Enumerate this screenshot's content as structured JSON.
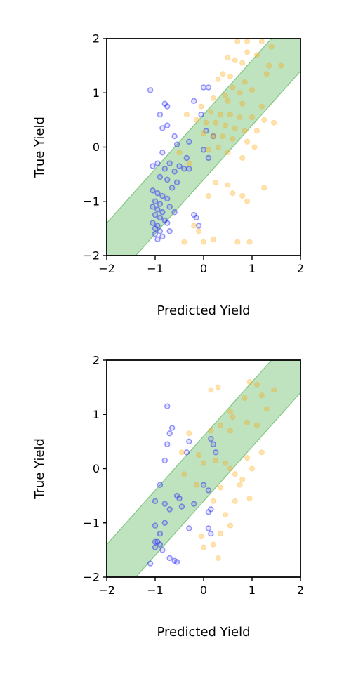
{
  "chart_data": [
    {
      "type": "scatter",
      "xlabel": "Predicted Yield",
      "ylabel": "True Yield",
      "xlim": [
        -2,
        2
      ],
      "ylim": [
        -2,
        2
      ],
      "xticks": [
        "−2",
        "−1",
        "0",
        "1",
        "2"
      ],
      "yticks": [
        "−2",
        "−1",
        "0",
        "1",
        "2"
      ],
      "band": {
        "description": "y = x ± 0.6",
        "half_width": 0.6,
        "color": "#2ca02c"
      },
      "series": [
        {
          "style": "ring",
          "color": "#1f1fff",
          "points": [
            [
              -1.1,
              1.05
            ],
            [
              -0.8,
              0.8
            ],
            [
              -0.75,
              0.75
            ],
            [
              -0.9,
              0.6
            ],
            [
              -0.85,
              0.35
            ],
            [
              -0.75,
              0.4
            ],
            [
              -0.6,
              0.2
            ],
            [
              -0.55,
              0.05
            ],
            [
              -0.85,
              -0.1
            ],
            [
              -1.05,
              -0.35
            ],
            [
              -0.95,
              -0.3
            ],
            [
              -0.8,
              -0.4
            ],
            [
              -0.7,
              -0.3
            ],
            [
              -0.5,
              -0.35
            ],
            [
              -0.4,
              -0.4
            ],
            [
              -0.35,
              -0.2
            ],
            [
              -0.3,
              -0.4
            ],
            [
              -0.9,
              -0.55
            ],
            [
              -0.75,
              -0.6
            ],
            [
              -0.65,
              -0.75
            ],
            [
              -1.05,
              -0.8
            ],
            [
              -0.95,
              -0.85
            ],
            [
              -0.85,
              -0.9
            ],
            [
              -0.75,
              -0.95
            ],
            [
              -1.0,
              -1.0
            ],
            [
              -0.9,
              -1.05
            ],
            [
              -1.05,
              -1.1
            ],
            [
              -0.95,
              -1.15
            ],
            [
              -0.85,
              -1.2
            ],
            [
              -1.0,
              -1.25
            ],
            [
              -0.9,
              -1.3
            ],
            [
              -0.8,
              -1.35
            ],
            [
              -1.05,
              -1.4
            ],
            [
              -0.95,
              -1.45
            ],
            [
              -1.0,
              -1.5
            ],
            [
              -0.9,
              -1.55
            ],
            [
              -1.0,
              -1.6
            ],
            [
              -0.95,
              -1.7
            ],
            [
              -0.85,
              -1.65
            ],
            [
              -0.7,
              -1.55
            ],
            [
              -0.2,
              -1.25
            ],
            [
              -0.15,
              -1.3
            ],
            [
              -0.1,
              -1.45
            ],
            [
              0.1,
              1.1
            ],
            [
              0.0,
              1.1
            ],
            [
              -0.2,
              0.85
            ],
            [
              -0.05,
              0.6
            ],
            [
              0.05,
              0.3
            ],
            [
              0.2,
              0.2
            ],
            [
              -0.3,
              0.1
            ],
            [
              0.0,
              -0.05
            ],
            [
              0.1,
              -0.2
            ],
            [
              -0.6,
              -0.45
            ],
            [
              -0.55,
              -0.65
            ],
            [
              -0.7,
              -1.1
            ],
            [
              -0.6,
              -1.2
            ],
            [
              -0.75,
              -1.4
            ]
          ]
        },
        {
          "style": "filled",
          "color": "#ffa500",
          "points": [
            [
              0.7,
              1.95
            ],
            [
              0.9,
              1.95
            ],
            [
              1.2,
              1.95
            ],
            [
              1.4,
              1.85
            ],
            [
              0.9,
              1.75
            ],
            [
              1.1,
              1.7
            ],
            [
              0.5,
              1.65
            ],
            [
              0.65,
              1.6
            ],
            [
              0.8,
              1.55
            ],
            [
              1.35,
              1.5
            ],
            [
              1.6,
              1.5
            ],
            [
              1.3,
              1.35
            ],
            [
              0.4,
              1.35
            ],
            [
              0.55,
              1.3
            ],
            [
              0.85,
              1.2
            ],
            [
              0.3,
              1.25
            ],
            [
              0.6,
              1.1
            ],
            [
              0.75,
              1.0
            ],
            [
              1.0,
              1.05
            ],
            [
              0.45,
              0.95
            ],
            [
              0.2,
              0.9
            ],
            [
              0.5,
              0.85
            ],
            [
              0.8,
              0.8
            ],
            [
              1.2,
              0.75
            ],
            [
              -0.05,
              0.75
            ],
            [
              0.15,
              0.65
            ],
            [
              0.35,
              0.6
            ],
            [
              0.55,
              0.6
            ],
            [
              0.75,
              0.55
            ],
            [
              1.0,
              0.55
            ],
            [
              -0.35,
              0.6
            ],
            [
              -0.15,
              0.5
            ],
            [
              0.05,
              0.45
            ],
            [
              0.25,
              0.45
            ],
            [
              0.45,
              0.4
            ],
            [
              0.65,
              0.35
            ],
            [
              0.85,
              0.3
            ],
            [
              1.1,
              0.3
            ],
            [
              1.25,
              0.5
            ],
            [
              1.45,
              0.45
            ],
            [
              0.0,
              0.25
            ],
            [
              0.2,
              0.2
            ],
            [
              0.4,
              0.2
            ],
            [
              0.6,
              0.15
            ],
            [
              0.9,
              0.1
            ],
            [
              1.05,
              0.0
            ],
            [
              0.3,
              0.0
            ],
            [
              0.1,
              -0.05
            ],
            [
              0.5,
              -0.1
            ],
            [
              0.8,
              -0.2
            ],
            [
              0.25,
              -0.65
            ],
            [
              0.5,
              -0.7
            ],
            [
              0.6,
              -0.85
            ],
            [
              0.8,
              -0.9
            ],
            [
              0.9,
              -1.0
            ],
            [
              0.1,
              -0.9
            ],
            [
              1.25,
              -0.75
            ],
            [
              -0.2,
              -1.45
            ],
            [
              -0.1,
              -1.55
            ],
            [
              -0.4,
              -1.75
            ],
            [
              0.0,
              -1.75
            ],
            [
              0.2,
              -1.7
            ],
            [
              0.7,
              -1.75
            ],
            [
              0.95,
              -1.75
            ],
            [
              -0.3,
              -0.3
            ],
            [
              -0.5,
              -0.1
            ]
          ]
        }
      ]
    },
    {
      "type": "scatter",
      "xlabel": "Predicted Yield",
      "ylabel": "True Yield",
      "xlim": [
        -2,
        2
      ],
      "ylim": [
        -2,
        2
      ],
      "xticks": [
        "−2",
        "−1",
        "0",
        "1",
        "2"
      ],
      "yticks": [
        "−2",
        "−1",
        "0",
        "1",
        "2"
      ],
      "band": {
        "description": "y = x ± 0.6",
        "half_width": 0.6,
        "color": "#2ca02c"
      },
      "series": [
        {
          "style": "ring",
          "color": "#1f1fff",
          "points": [
            [
              -0.75,
              1.15
            ],
            [
              -0.65,
              0.75
            ],
            [
              -0.7,
              0.65
            ],
            [
              -0.75,
              0.45
            ],
            [
              -0.3,
              0.5
            ],
            [
              -0.35,
              0.3
            ],
            [
              -0.8,
              0.15
            ],
            [
              0.15,
              0.55
            ],
            [
              0.2,
              0.45
            ],
            [
              0.25,
              0.3
            ],
            [
              -0.9,
              -0.3
            ],
            [
              -0.55,
              -0.5
            ],
            [
              -0.5,
              -0.55
            ],
            [
              -1.0,
              -0.6
            ],
            [
              -0.8,
              -0.65
            ],
            [
              -0.7,
              -0.75
            ],
            [
              -0.45,
              -0.7
            ],
            [
              -0.2,
              -0.65
            ],
            [
              0.0,
              -0.3
            ],
            [
              0.1,
              -0.4
            ],
            [
              0.15,
              -0.75
            ],
            [
              0.1,
              -0.8
            ],
            [
              -1.0,
              -1.05
            ],
            [
              -0.8,
              -1.0
            ],
            [
              -0.9,
              -1.2
            ],
            [
              -1.0,
              -1.35
            ],
            [
              -0.9,
              -1.4
            ],
            [
              -1.0,
              -1.45
            ],
            [
              -0.95,
              -1.35
            ],
            [
              -0.85,
              -1.5
            ],
            [
              -0.7,
              -1.65
            ],
            [
              -0.6,
              -1.7
            ],
            [
              -0.55,
              -1.72
            ],
            [
              -1.1,
              -1.75
            ],
            [
              -0.3,
              -1.1
            ],
            [
              0.1,
              -1.1
            ],
            [
              0.15,
              -1.2
            ]
          ]
        },
        {
          "style": "filled",
          "color": "#ffa500",
          "points": [
            [
              0.3,
              1.5
            ],
            [
              0.15,
              1.45
            ],
            [
              0.95,
              1.6
            ],
            [
              1.1,
              1.55
            ],
            [
              1.45,
              1.45
            ],
            [
              0.85,
              1.3
            ],
            [
              1.2,
              1.35
            ],
            [
              1.3,
              1.1
            ],
            [
              0.55,
              1.05
            ],
            [
              0.6,
              0.95
            ],
            [
              0.35,
              0.8
            ],
            [
              0.55,
              0.7
            ],
            [
              0.9,
              0.85
            ],
            [
              1.1,
              0.8
            ],
            [
              0.15,
              0.7
            ],
            [
              -0.3,
              0.65
            ],
            [
              -0.45,
              0.3
            ],
            [
              -0.1,
              0.25
            ],
            [
              0.0,
              0.1
            ],
            [
              0.25,
              0.15
            ],
            [
              0.45,
              0.1
            ],
            [
              0.55,
              0.0
            ],
            [
              0.65,
              -0.1
            ],
            [
              0.9,
              0.2
            ],
            [
              1.0,
              0.0
            ],
            [
              0.8,
              -0.2
            ],
            [
              -0.15,
              -0.3
            ],
            [
              0.35,
              -0.35
            ],
            [
              0.2,
              -0.6
            ],
            [
              0.45,
              -0.85
            ],
            [
              0.55,
              -1.05
            ],
            [
              0.35,
              -1.2
            ],
            [
              0.2,
              -1.4
            ],
            [
              0.0,
              -1.45
            ],
            [
              0.3,
              -1.65
            ],
            [
              -0.05,
              -1.25
            ],
            [
              0.75,
              -0.3
            ],
            [
              0.65,
              -0.6
            ],
            [
              1.2,
              0.3
            ],
            [
              0.95,
              -0.55
            ],
            [
              -0.4,
              -0.1
            ]
          ]
        }
      ]
    }
  ]
}
